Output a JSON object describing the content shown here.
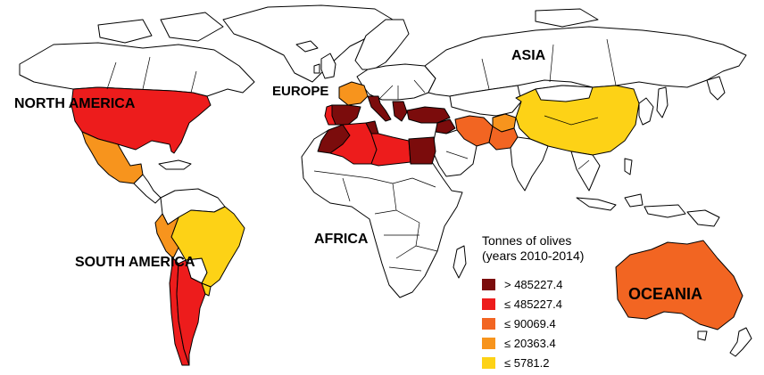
{
  "regions": {
    "north_america": "NORTH AMERICA",
    "south_america": "SOUTH AMERICA",
    "europe": "EUROPE",
    "africa": "AFRICA",
    "asia": "ASIA",
    "oceania": "OCEANIA"
  },
  "legend": {
    "title_line1": "Tonnes of olives",
    "title_line2": "(years 2010-2014)",
    "items": [
      {
        "label": "> 485227.4",
        "color": "#7b0c0c"
      },
      {
        "label": "≤ 485227.4",
        "color": "#ed1c1c"
      },
      {
        "label": "≤ 90069.4",
        "color": "#f26522"
      },
      {
        "label": "≤ 20363.4",
        "color": "#f7941d"
      },
      {
        "label": "≤ 5781.2",
        "color": "#fdd216"
      }
    ]
  },
  "classes": {
    "none": "#ffffff",
    "c1": "#7b0c0c",
    "c2": "#ed1c1c",
    "c3": "#f26522",
    "c4": "#f7941d",
    "c5": "#fdd216"
  },
  "countries": [
    {
      "name": "United States",
      "class": "c2"
    },
    {
      "name": "Mexico",
      "class": "c4"
    },
    {
      "name": "Brazil",
      "class": "c5"
    },
    {
      "name": "Peru",
      "class": "c4"
    },
    {
      "name": "Chile",
      "class": "c2"
    },
    {
      "name": "Argentina",
      "class": "c2"
    },
    {
      "name": "Uruguay",
      "class": "c5"
    },
    {
      "name": "Spain",
      "class": "c1"
    },
    {
      "name": "Portugal",
      "class": "c2"
    },
    {
      "name": "France",
      "class": "c4"
    },
    {
      "name": "Italy",
      "class": "c1"
    },
    {
      "name": "Greece",
      "class": "c1"
    },
    {
      "name": "Turkey",
      "class": "c1"
    },
    {
      "name": "Morocco",
      "class": "c1"
    },
    {
      "name": "Algeria",
      "class": "c2"
    },
    {
      "name": "Tunisia",
      "class": "c1"
    },
    {
      "name": "Libya",
      "class": "c2"
    },
    {
      "name": "Egypt",
      "class": "c1"
    },
    {
      "name": "Syria",
      "class": "c1"
    },
    {
      "name": "Iran",
      "class": "c3"
    },
    {
      "name": "Afghanistan",
      "class": "c4"
    },
    {
      "name": "Pakistan",
      "class": "c3"
    },
    {
      "name": "China",
      "class": "c5"
    },
    {
      "name": "Australia",
      "class": "c3"
    }
  ]
}
